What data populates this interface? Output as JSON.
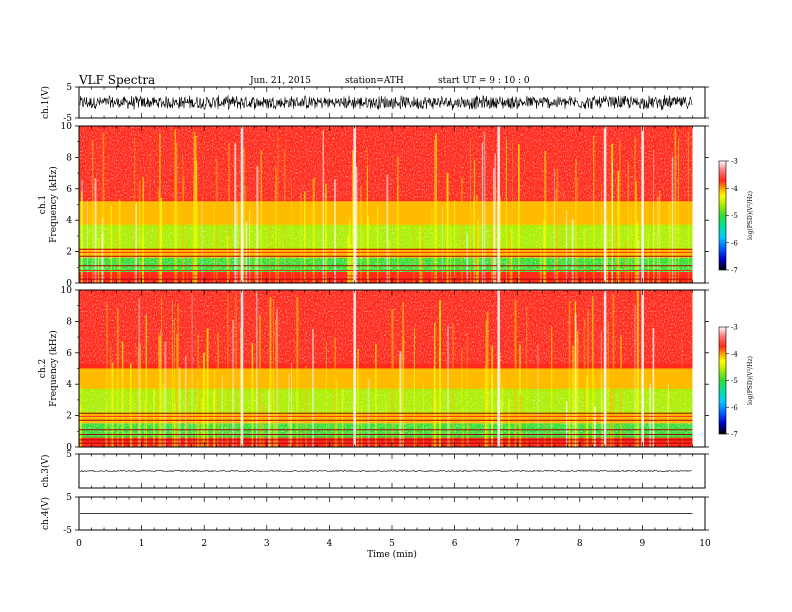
{
  "header": {
    "title": "VLF  Spectra",
    "date": "Jun. 21, 2015",
    "station": "station=ATH",
    "start": "start  UT  =   9  : 10 : 0"
  },
  "colors": {
    "background": "#ffffff",
    "axes": "#000000",
    "spectrogram_base": "#ff2a1c",
    "colormap": [
      "#000000",
      "#0000cc",
      "#00a8ff",
      "#00e0a0",
      "#33dd33",
      "#aaee00",
      "#ffff00",
      "#ffbb00",
      "#ff2a1c",
      "#ff8080",
      "#ffffff"
    ]
  },
  "chart_data": [
    {
      "type": "line",
      "panel": "ch1",
      "ylabel": "ch.1(V)",
      "yticks": [
        "5",
        "-5"
      ],
      "ylim": [
        -5,
        5
      ],
      "xlim": [
        0,
        10
      ],
      "data_extent_min": 9.8,
      "description_of_signal": "dense broadband noise",
      "amplitude_range": [
        -2.5,
        2.5
      ]
    },
    {
      "type": "heatmap",
      "panel": "ch1-spectrogram",
      "ylabel_line1": "ch.1",
      "ylabel_line2": "Frequency  (kHz)",
      "yticks": [
        "10",
        "8",
        "6",
        "4",
        "2",
        "0"
      ],
      "ylim": [
        0,
        10
      ],
      "xlim": [
        0,
        10
      ],
      "data_extent_min": 9.8,
      "colorbar": {
        "label": "log(PSD)(V²/Hz)",
        "ticks": [
          "-3",
          "-4",
          "-5",
          "-6",
          "-7"
        ],
        "range": [
          -7,
          -3
        ]
      },
      "bands_khz": [
        {
          "from": 5.2,
          "to": 10,
          "level": -3.8,
          "name": "upper"
        },
        {
          "from": 3.7,
          "to": 5.2,
          "level": -4.3,
          "name": "mid-yellow"
        },
        {
          "from": 2.2,
          "to": 3.7,
          "level": -5.1,
          "name": "green"
        },
        {
          "from": 1.6,
          "to": 2.2,
          "level": -4.1,
          "name": "red-gap"
        },
        {
          "from": 0.7,
          "to": 1.6,
          "level": -5.4,
          "name": "cyan-green"
        },
        {
          "from": 0,
          "to": 0.7,
          "level": -4.0,
          "name": "low"
        }
      ],
      "bright_events_min": [
        4.4,
        2.6,
        6.7,
        8.4,
        9.0
      ]
    },
    {
      "type": "heatmap",
      "panel": "ch2-spectrogram",
      "ylabel_line1": "ch.2",
      "ylabel_line2": "Frequency  (kHz)",
      "yticks": [
        "10",
        "8",
        "6",
        "4",
        "2",
        "0"
      ],
      "ylim": [
        0,
        10
      ],
      "xlim": [
        0,
        10
      ],
      "data_extent_min": 9.8,
      "colorbar": {
        "label": "log(PSD)(V²/Hz)",
        "ticks": [
          "-3",
          "-4",
          "-5",
          "-6",
          "-7"
        ],
        "range": [
          -7,
          -3
        ]
      },
      "bands_khz": [
        {
          "from": 5.0,
          "to": 10,
          "level": -3.8,
          "name": "upper"
        },
        {
          "from": 3.7,
          "to": 5.0,
          "level": -4.3,
          "name": "mid-yellow"
        },
        {
          "from": 2.1,
          "to": 3.7,
          "level": -5.1,
          "name": "green"
        },
        {
          "from": 1.5,
          "to": 2.1,
          "level": -4.1,
          "name": "red-gap"
        },
        {
          "from": 0.6,
          "to": 1.5,
          "level": -5.4,
          "name": "cyan-green"
        },
        {
          "from": 0,
          "to": 0.6,
          "level": -4.0,
          "name": "low"
        }
      ],
      "bright_events_min": [
        4.4,
        2.6,
        6.7,
        8.4,
        9.0
      ]
    },
    {
      "type": "line",
      "panel": "ch3",
      "ylabel": "ch.3(V)",
      "yticks": [
        "5"
      ],
      "ylim": [
        -5,
        5
      ],
      "xlim": [
        0,
        10
      ],
      "data_extent_min": 9.8,
      "level": 0,
      "amplitude_range": [
        -0.2,
        0.2
      ]
    },
    {
      "type": "line",
      "panel": "ch4",
      "ylabel": "ch.4(V)",
      "yticks": [
        "5",
        "-5"
      ],
      "ylim": [
        -5,
        5
      ],
      "xlim": [
        0,
        10
      ],
      "data_extent_min": 9.8,
      "level": 0
    }
  ],
  "xaxis": {
    "label": "Time  (min)",
    "ticks": [
      "0",
      "1",
      "2",
      "3",
      "4",
      "5",
      "6",
      "7",
      "8",
      "9",
      "10"
    ],
    "range": [
      0,
      10
    ]
  }
}
